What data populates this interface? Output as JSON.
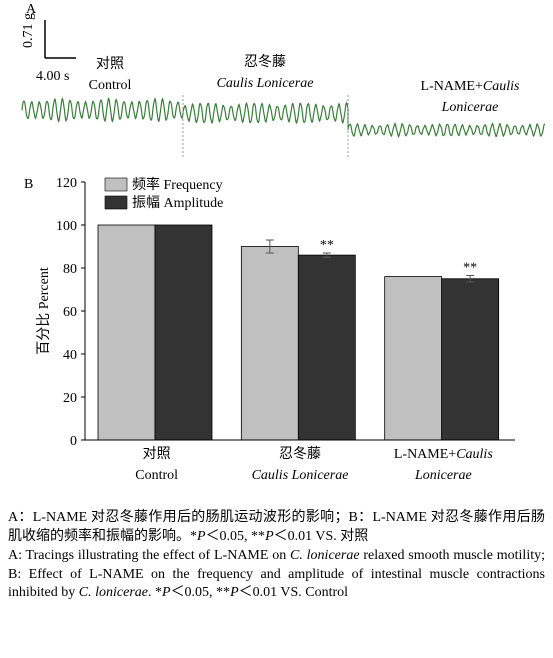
{
  "panel_a": {
    "label": "A",
    "scale_y": "0.71 g",
    "scale_x": "4.00 s",
    "color": "#3a7d3a",
    "phases": [
      [
        [
          {
            "text": "对照"
          }
        ],
        [
          {
            "text": "Control"
          }
        ]
      ],
      [
        [
          {
            "text": "忍冬藤"
          }
        ],
        [
          {
            "text": "Caulis Lonicerae",
            "italic": true
          }
        ]
      ],
      [
        [
          {
            "text": "L-NAME+"
          },
          {
            "text": "Caulis",
            "italic": true
          }
        ],
        [
          {
            "text": "Lonicerae",
            "italic": true
          }
        ]
      ]
    ]
  },
  "chart_data": {
    "type": "bar",
    "panel_label": "B",
    "ylabel": "百分比 Percent",
    "categories": [
      [
        [
          {
            "text": "对照"
          }
        ],
        [
          {
            "text": "Control"
          }
        ]
      ],
      [
        [
          {
            "text": "忍冬藤"
          }
        ],
        [
          {
            "text": "Caulis Lonicerae",
            "italic": true
          }
        ]
      ],
      [
        [
          {
            "text": "L-NAME+"
          },
          {
            "text": "Caulis",
            "italic": true
          }
        ],
        [
          {
            "text": "Lonicerae",
            "italic": true
          }
        ]
      ]
    ],
    "series": [
      {
        "name": "频率 Frequency",
        "color": "#c0c0c0",
        "values": [
          100,
          90,
          76
        ],
        "errors": [
          0,
          3,
          0
        ],
        "annotations": [
          null,
          null,
          null
        ]
      },
      {
        "name": "振幅 Amplitude",
        "color": "#333333",
        "values": [
          100,
          86,
          75
        ],
        "errors": [
          0,
          1,
          1.5
        ],
        "annotations": [
          null,
          "**",
          "**"
        ]
      }
    ],
    "ylim": [
      0,
      120
    ],
    "yticks": [
      0,
      20,
      40,
      60,
      80,
      100,
      120
    ],
    "legend": "upper left"
  },
  "caption": {
    "cn": [
      {
        "text": "A：L-NAME 对忍冬藤作用后的肠肌运动波形的影响；B：L-NAME 对忍冬藤作用后肠肌收缩的频率和振幅的影响。*"
      },
      {
        "text": "P",
        "italic": true
      },
      {
        "text": "＜0.05, **"
      },
      {
        "text": "P",
        "italic": true
      },
      {
        "text": "＜0.01 VS. 对照"
      }
    ],
    "en": [
      {
        "text": "A: Tracings illustrating the effect of L-NAME on "
      },
      {
        "text": "C. lonicerae",
        "italic": true
      },
      {
        "text": " relaxed smooth muscle motility; B: Effect of L-NAME on the frequency and amplitude of intestinal muscle contractions inhibited by "
      },
      {
        "text": "C. lonicerae",
        "italic": true
      },
      {
        "text": ". *"
      },
      {
        "text": "P",
        "italic": true
      },
      {
        "text": "＜0.05, **"
      },
      {
        "text": "P",
        "italic": true
      },
      {
        "text": "＜0.01 VS. Control"
      }
    ]
  }
}
